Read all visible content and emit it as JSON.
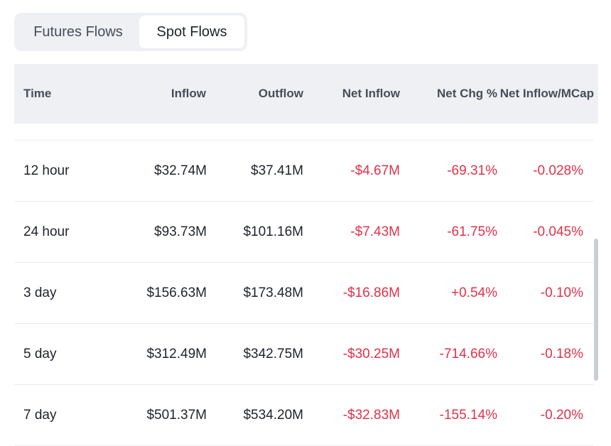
{
  "tabs": [
    {
      "label": "Futures Flows",
      "active": false
    },
    {
      "label": "Spot Flows",
      "active": true
    }
  ],
  "table": {
    "headers": [
      "Time",
      "Inflow",
      "Outflow",
      "Net Inflow",
      "Net Chg %",
      "Net Inflow/MCap"
    ],
    "rows": [
      {
        "time": "12 hour",
        "inflow": "$32.74M",
        "outflow": "$37.41M",
        "net_inflow": "-$4.67M",
        "net_chg": "-69.31%",
        "net_mcap": "-0.028%"
      },
      {
        "time": "24 hour",
        "inflow": "$93.73M",
        "outflow": "$101.16M",
        "net_inflow": "-$7.43M",
        "net_chg": "-61.75%",
        "net_mcap": "-0.045%"
      },
      {
        "time": "3 day",
        "inflow": "$156.63M",
        "outflow": "$173.48M",
        "net_inflow": "-$16.86M",
        "net_chg": "+0.54%",
        "net_mcap": "-0.10%"
      },
      {
        "time": "5 day",
        "inflow": "$312.49M",
        "outflow": "$342.75M",
        "net_inflow": "-$30.25M",
        "net_chg": "-714.66%",
        "net_mcap": "-0.18%"
      },
      {
        "time": "7 day",
        "inflow": "$501.37M",
        "outflow": "$534.20M",
        "net_inflow": "-$32.83M",
        "net_chg": "-155.14%",
        "net_mcap": "-0.20%"
      }
    ]
  },
  "colors": {
    "negative": "#e0324a",
    "header_bg": "#eef0f3",
    "text": "#1e2329"
  }
}
